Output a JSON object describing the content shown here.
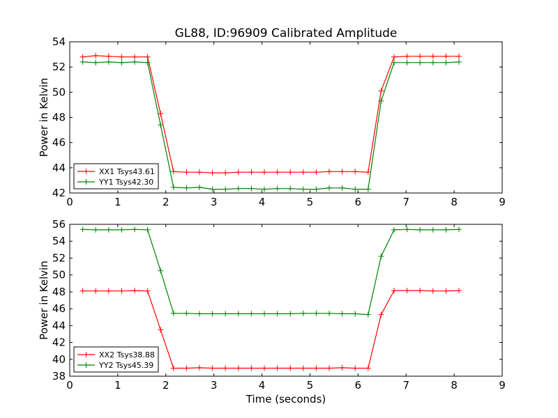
{
  "figure": {
    "title": "GL88, ID:96909 Calibrated Amplitude",
    "xlabel": "Time (seconds)"
  },
  "chart_data": [
    {
      "type": "line",
      "title": "GL88, ID:96909 Calibrated Amplitude",
      "xlabel": "",
      "ylabel": "Power in Kelvin",
      "xlim": [
        0,
        9
      ],
      "ylim": [
        42,
        54
      ],
      "xticks": [
        "0",
        "1",
        "2",
        "3",
        "4",
        "5",
        "6",
        "7",
        "8",
        "9"
      ],
      "yticks": [
        "42",
        "44",
        "46",
        "48",
        "50",
        "52",
        "54"
      ],
      "grid": false,
      "legend": "lower-left",
      "series": [
        {
          "name": "XX1 Tsys43.61",
          "color": "#ff0000",
          "x": [
            0.27,
            0.54,
            0.81,
            1.08,
            1.35,
            1.62,
            1.89,
            2.16,
            2.43,
            2.7,
            2.97,
            3.24,
            3.51,
            3.78,
            4.05,
            4.32,
            4.59,
            4.86,
            5.13,
            5.4,
            5.67,
            5.94,
            6.21,
            6.48,
            6.75,
            7.02,
            7.29,
            7.56,
            7.83,
            8.1
          ],
          "y": [
            52.8,
            52.9,
            52.85,
            52.8,
            52.8,
            52.8,
            48.3,
            43.7,
            43.65,
            43.65,
            43.6,
            43.6,
            43.65,
            43.65,
            43.65,
            43.65,
            43.65,
            43.65,
            43.65,
            43.7,
            43.7,
            43.7,
            43.65,
            50.1,
            52.8,
            52.85,
            52.85,
            52.85,
            52.85,
            52.85
          ]
        },
        {
          "name": "YY1 Tsys42.30",
          "color": "#008000",
          "x": [
            0.27,
            0.54,
            0.81,
            1.08,
            1.35,
            1.62,
            1.89,
            2.16,
            2.43,
            2.7,
            2.97,
            3.24,
            3.51,
            3.78,
            4.05,
            4.32,
            4.59,
            4.86,
            5.13,
            5.4,
            5.67,
            5.94,
            6.21,
            6.48,
            6.75,
            7.02,
            7.29,
            7.56,
            7.83,
            8.1
          ],
          "y": [
            52.4,
            52.35,
            52.4,
            52.35,
            52.4,
            52.35,
            47.4,
            42.45,
            42.4,
            42.45,
            42.3,
            42.3,
            42.35,
            42.35,
            42.3,
            42.35,
            42.35,
            42.3,
            42.3,
            42.4,
            42.4,
            42.3,
            42.3,
            49.3,
            52.35,
            52.35,
            52.35,
            52.35,
            52.35,
            52.4
          ]
        }
      ]
    },
    {
      "type": "line",
      "xlabel": "Time (seconds)",
      "ylabel": "Power in Kelvin",
      "xlim": [
        0,
        9
      ],
      "ylim": [
        38,
        56
      ],
      "xticks": [
        "0",
        "1",
        "2",
        "3",
        "4",
        "5",
        "6",
        "7",
        "8",
        "9"
      ],
      "yticks": [
        "38",
        "40",
        "42",
        "44",
        "46",
        "48",
        "50",
        "52",
        "54",
        "56"
      ],
      "grid": false,
      "legend": "lower-left",
      "series": [
        {
          "name": "XX2 Tsys38.88",
          "color": "#ff0000",
          "x": [
            0.27,
            0.54,
            0.81,
            1.08,
            1.35,
            1.62,
            1.89,
            2.16,
            2.43,
            2.7,
            2.97,
            3.24,
            3.51,
            3.78,
            4.05,
            4.32,
            4.59,
            4.86,
            5.13,
            5.4,
            5.67,
            5.94,
            6.21,
            6.48,
            6.75,
            7.02,
            7.29,
            7.56,
            7.83,
            8.1
          ],
          "y": [
            48.1,
            48.1,
            48.1,
            48.1,
            48.15,
            48.1,
            43.5,
            38.95,
            38.95,
            39.0,
            38.95,
            38.95,
            38.95,
            38.95,
            38.95,
            38.95,
            38.95,
            38.95,
            38.95,
            38.95,
            39.0,
            38.95,
            38.95,
            45.3,
            48.15,
            48.15,
            48.15,
            48.1,
            48.1,
            48.15
          ]
        },
        {
          "name": "YY2 Tsys45.39",
          "color": "#008000",
          "x": [
            0.27,
            0.54,
            0.81,
            1.08,
            1.35,
            1.62,
            1.89,
            2.16,
            2.43,
            2.7,
            2.97,
            3.24,
            3.51,
            3.78,
            4.05,
            4.32,
            4.59,
            4.86,
            5.13,
            5.4,
            5.67,
            5.94,
            6.21,
            6.48,
            6.75,
            7.02,
            7.29,
            7.56,
            7.83,
            8.1
          ],
          "y": [
            55.4,
            55.35,
            55.35,
            55.35,
            55.4,
            55.35,
            50.5,
            45.45,
            45.45,
            45.4,
            45.4,
            45.4,
            45.4,
            45.4,
            45.4,
            45.4,
            45.4,
            45.45,
            45.45,
            45.45,
            45.4,
            45.4,
            45.3,
            52.2,
            55.35,
            55.4,
            55.35,
            55.35,
            55.35,
            55.4
          ]
        }
      ]
    }
  ]
}
